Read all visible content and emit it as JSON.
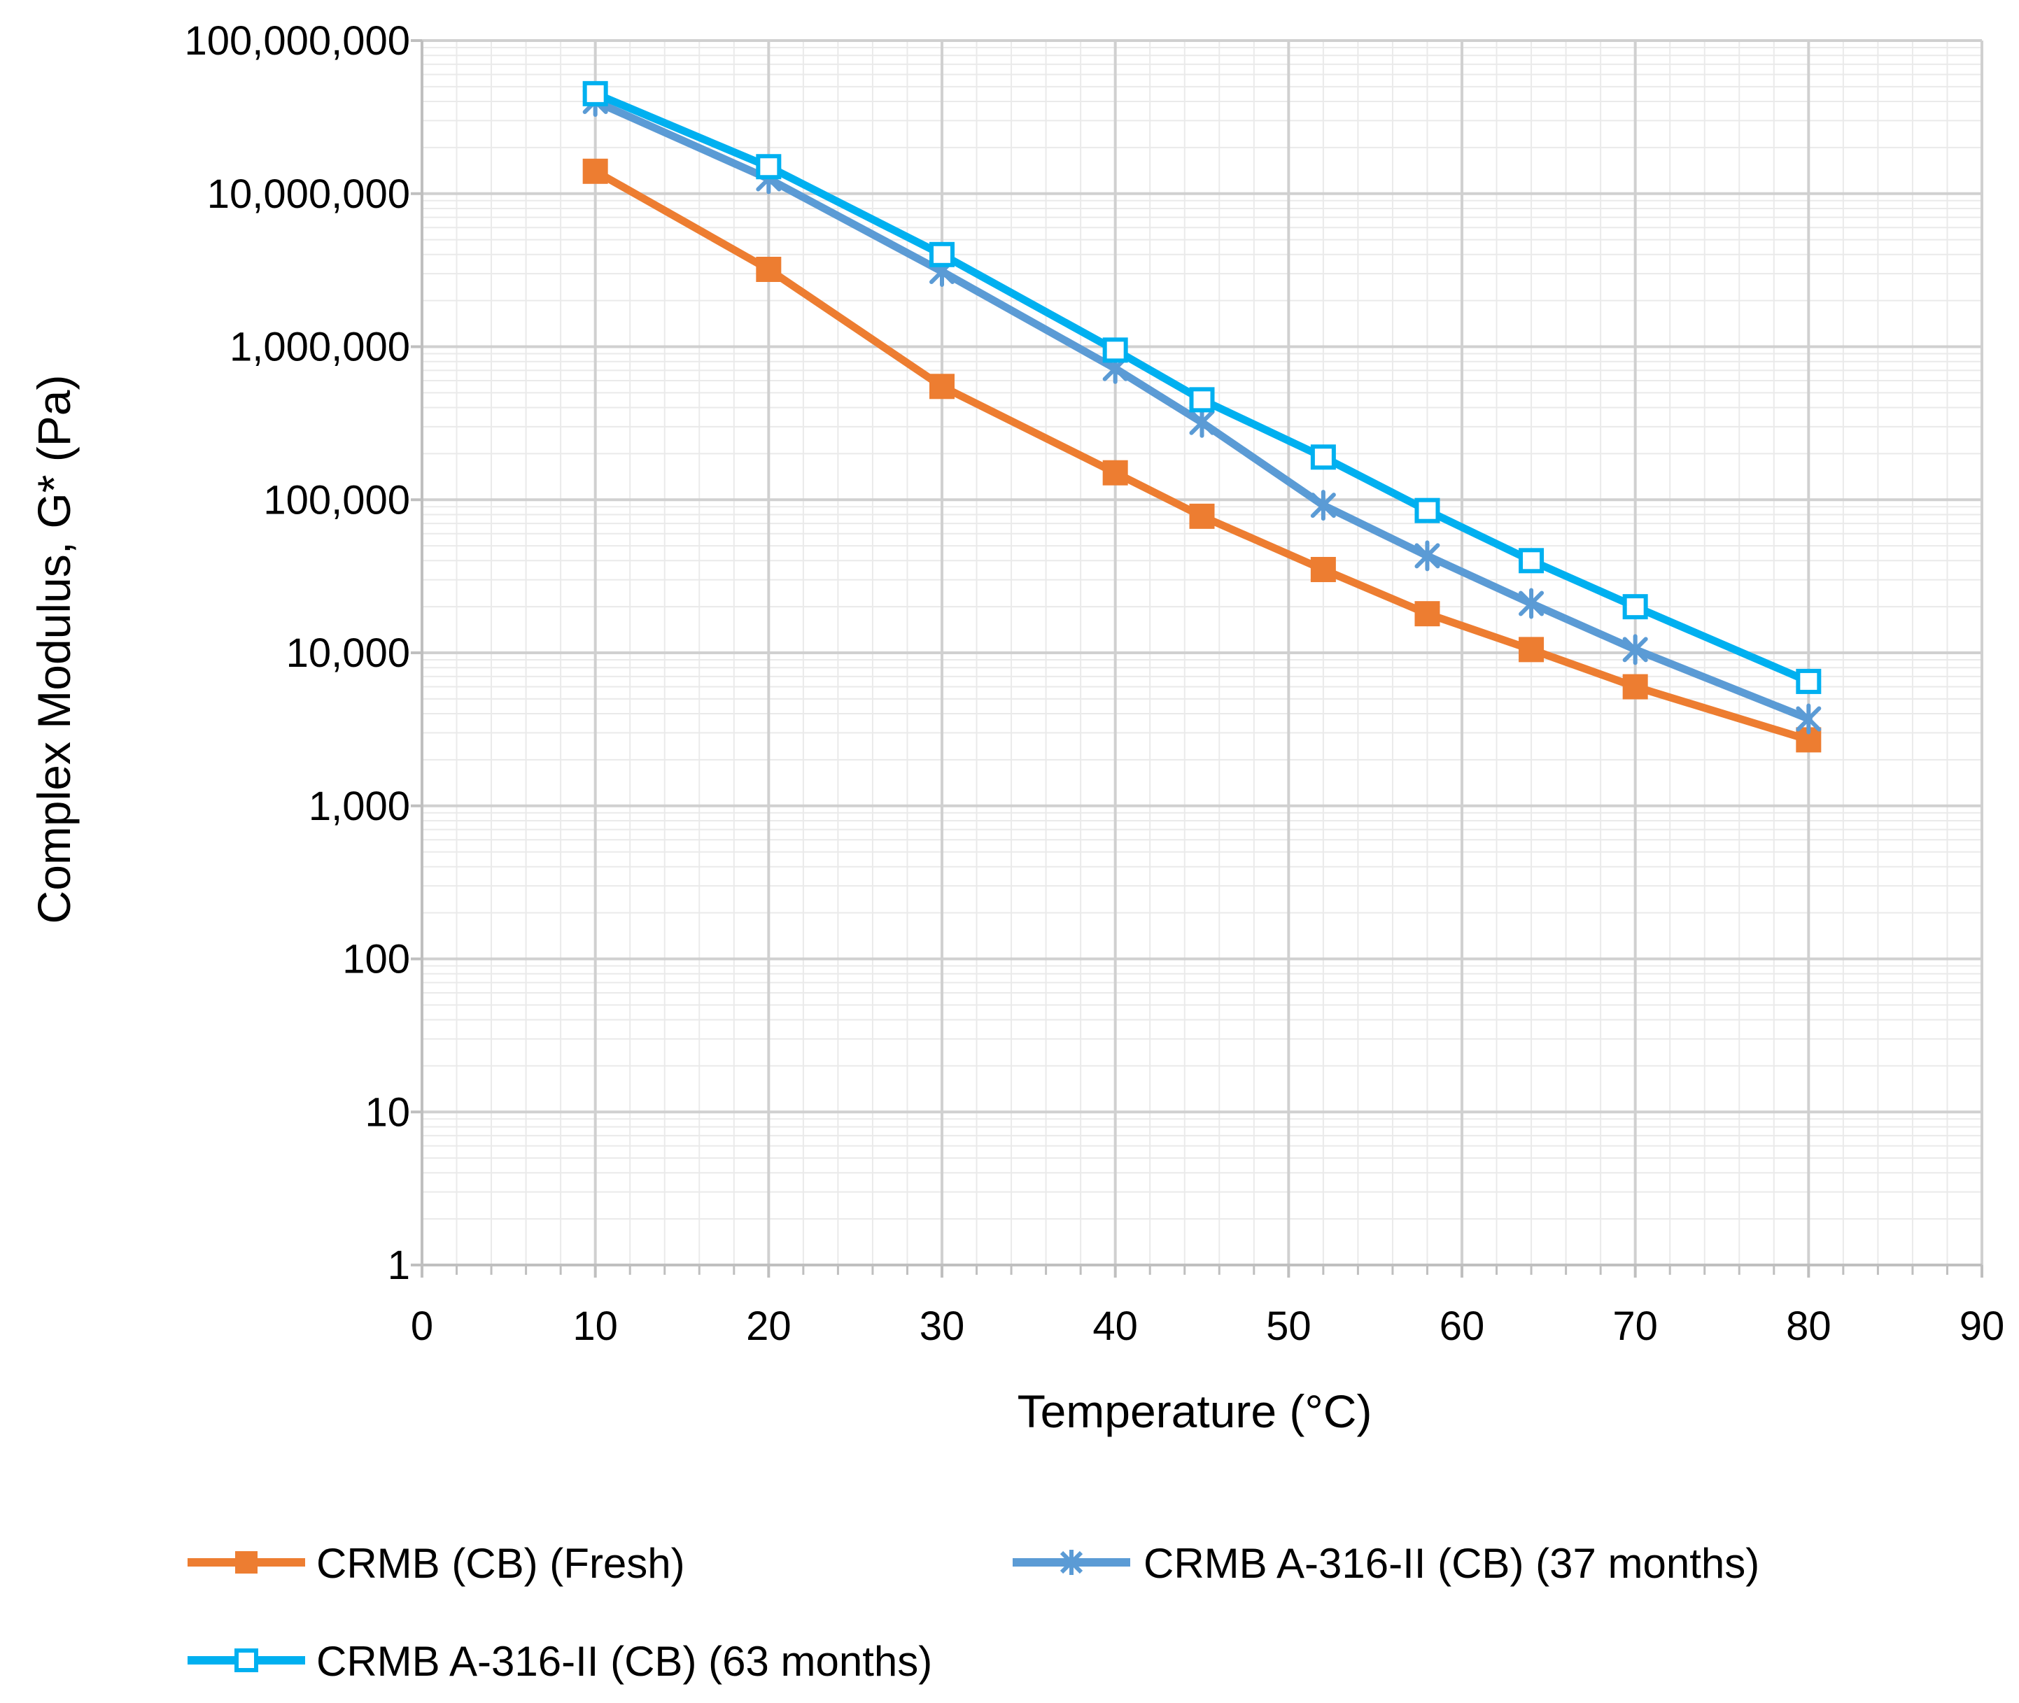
{
  "chart_data": {
    "type": "line",
    "title": "",
    "xlabel": "Temperature (°C)",
    "ylabel": "Complex Modulus, G* (Pa)",
    "xlim": [
      0,
      90
    ],
    "ylim": [
      1,
      100000000
    ],
    "yscale": "log",
    "grid": true,
    "legend_position": "bottom",
    "x_ticks": [
      "0",
      "10",
      "20",
      "30",
      "40",
      "50",
      "60",
      "70",
      "80",
      "90"
    ],
    "y_ticks": [
      "1",
      "10",
      "100",
      "1,000",
      "10,000",
      "100,000",
      "1,000,000",
      "10,000,000",
      "100,000,000"
    ],
    "series": [
      {
        "name": "CRMB (CB) (Fresh)",
        "color": "#ED7D31",
        "marker": "filled-square",
        "x": [
          10,
          20,
          30,
          40,
          45,
          52,
          58,
          64,
          70,
          80
        ],
        "values": [
          14000000,
          3200000,
          550000,
          150000,
          78000,
          35000,
          18000,
          10500,
          6000,
          2700
        ]
      },
      {
        "name": "CRMB A-316-II (CB) (37 months)",
        "color": "#5B9BD5",
        "marker": "asterisk",
        "x": [
          10,
          20,
          30,
          40,
          45,
          52,
          58,
          64,
          70,
          80
        ],
        "values": [
          40000000,
          12500000,
          3100000,
          720000,
          320000,
          92000,
          43000,
          21000,
          10500,
          3700
        ]
      },
      {
        "name": "CRMB A-316-II (CB) (63 months)",
        "color": "#00B0F0",
        "marker": "open-square",
        "x": [
          10,
          20,
          30,
          40,
          45,
          52,
          58,
          64,
          70,
          80
        ],
        "values": [
          45000000,
          15000000,
          4000000,
          950000,
          450000,
          190000,
          85000,
          40000,
          20000,
          6500
        ]
      }
    ]
  }
}
